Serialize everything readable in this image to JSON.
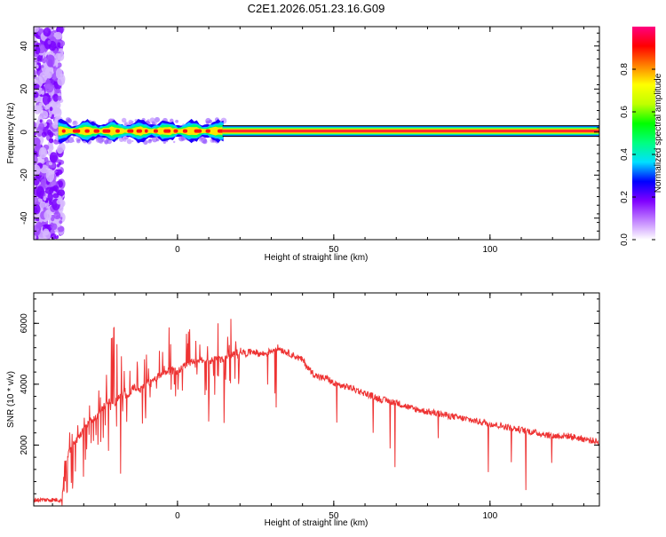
{
  "title": "C2E1.2026.051.23.16.G09",
  "chart_data": [
    {
      "type": "heatmap",
      "xlabel": "Height of straight line (km)",
      "ylabel": "Frequency (Hz)",
      "xlim": [
        -46,
        135
      ],
      "ylim": [
        -50,
        49
      ],
      "xticks": [
        0,
        50,
        100
      ],
      "yticks": [
        -40,
        -20,
        0,
        20,
        40
      ],
      "colorbar": {
        "label": "Normalized spectral amplitude",
        "range": [
          0.0,
          1.0
        ],
        "ticks": [
          0.0,
          0.2,
          0.4,
          0.6,
          0.8
        ],
        "tick_labels": [
          "0.0",
          "0.2",
          "0.4",
          "0.6",
          "0.8"
        ],
        "colors": [
          "#ffffff",
          "#c080ff",
          "#8000ff",
          "#0000ff",
          "#00e0ff",
          "#00ff80",
          "#00ff00",
          "#c0ff00",
          "#ffff00",
          "#ff8000",
          "#ff0000",
          "#ff0080"
        ]
      },
      "features": {
        "noise_region_x": [
          -46,
          -37
        ],
        "trace_center_hz": 0.5,
        "trace_dense_until_x": 15,
        "trace_end_x": 135
      }
    },
    {
      "type": "line",
      "xlabel": "Height of straight line (km)",
      "ylabel": "SNR (10 * v/v)",
      "xlim": [
        -46,
        135
      ],
      "ylim": [
        0,
        7000
      ],
      "xticks": [
        0,
        50,
        100
      ],
      "yticks": [
        2000,
        4000,
        6000
      ],
      "color": "#ee3333",
      "series": [
        {
          "x": [
            -46,
            -37,
            -36,
            -34,
            -32,
            -30,
            -28,
            -26,
            -24,
            -22,
            -20,
            -18,
            -16,
            -14,
            -12,
            -10,
            -8,
            -6,
            -4,
            -2,
            0,
            2,
            4,
            6,
            8,
            10,
            12,
            14,
            16,
            18,
            20,
            22,
            24,
            26,
            28,
            30,
            32,
            34,
            36,
            38,
            40,
            42,
            44,
            46,
            48,
            50,
            55,
            60,
            65,
            70,
            75,
            80,
            85,
            90,
            95,
            100,
            105,
            110,
            115,
            120,
            125,
            130,
            135
          ],
          "y": [
            200,
            200,
            1500,
            1900,
            2200,
            2500,
            2800,
            2900,
            3200,
            3500,
            3300,
            3700,
            3600,
            3900,
            3800,
            4000,
            4100,
            4300,
            4400,
            4500,
            4400,
            4600,
            4700,
            4800,
            4800,
            4700,
            4900,
            4800,
            4900,
            5000,
            5100,
            5000,
            5100,
            5000,
            5000,
            5100,
            5200,
            5100,
            5000,
            4900,
            4800,
            4500,
            4300,
            4200,
            4200,
            4000,
            3900,
            3700,
            3500,
            3400,
            3200,
            3100,
            3000,
            2900,
            2800,
            2700,
            2600,
            2500,
            2400,
            2300,
            2300,
            2200,
            2100
          ]
        }
      ]
    }
  ]
}
